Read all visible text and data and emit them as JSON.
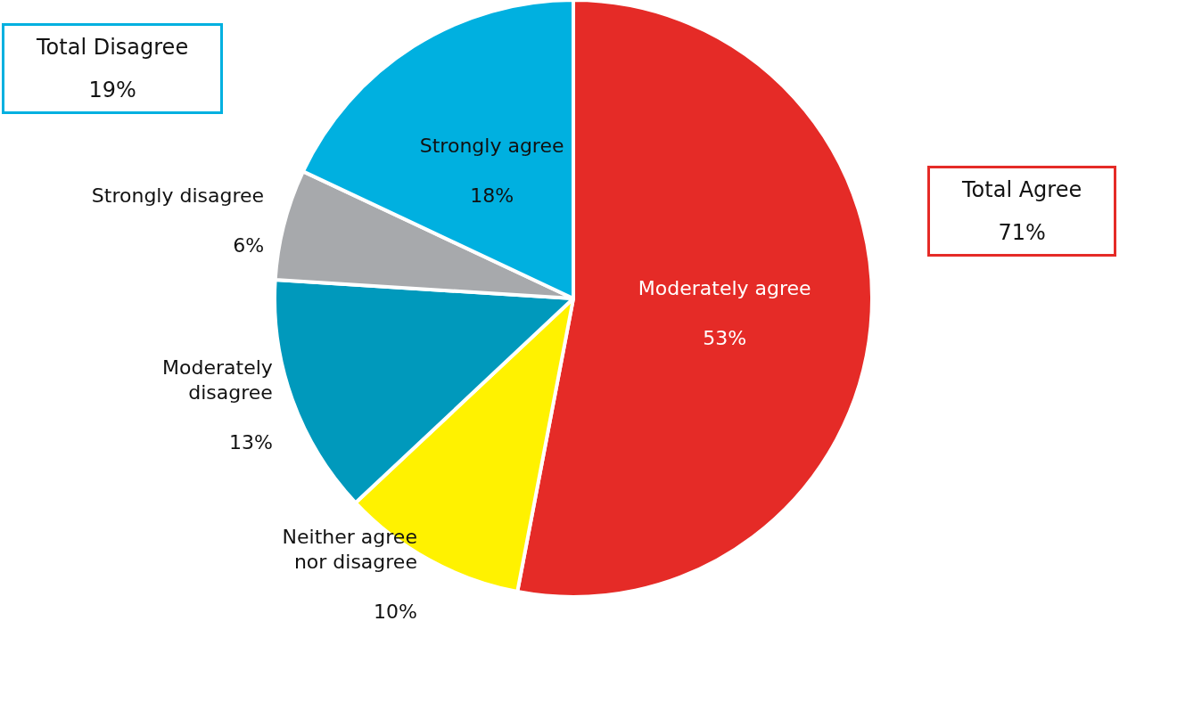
{
  "chart_data": {
    "type": "pie",
    "categories": [
      "Moderately agree",
      "Neither agree nor disagree",
      "Moderately disagree",
      "Strongly disagree",
      "Strongly agree"
    ],
    "values": [
      53,
      10,
      13,
      6,
      18
    ],
    "colors": [
      "#e52b27",
      "#fff200",
      "#0099bc",
      "#a7a9ac",
      "#00b0e0"
    ],
    "value_labels": [
      "53%",
      "10%",
      "13%",
      "6%",
      "18%"
    ],
    "legend": false,
    "annotations": [
      "Total Disagree\n19%",
      "Total Agree\n71%"
    ]
  }
}
